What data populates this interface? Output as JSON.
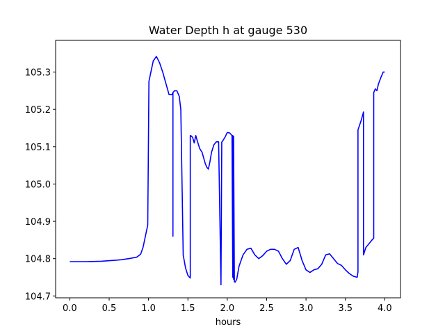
{
  "chart_data": {
    "type": "line",
    "title": "Water Depth h at gauge 530",
    "xlabel": "hours",
    "ylabel": "",
    "xlim": [
      -0.18,
      4.2
    ],
    "ylim": [
      104.695,
      105.385
    ],
    "x_ticks": [
      0.0,
      0.5,
      1.0,
      1.5,
      2.0,
      2.5,
      3.0,
      3.5,
      4.0
    ],
    "x_tick_labels": [
      "0.0",
      "0.5",
      "1.0",
      "1.5",
      "2.0",
      "2.5",
      "3.0",
      "3.5",
      "4.0"
    ],
    "y_ticks": [
      104.7,
      104.8,
      104.9,
      105.0,
      105.1,
      105.2,
      105.3
    ],
    "y_tick_labels": [
      "104.7",
      "104.8",
      "104.9",
      "105.0",
      "105.1",
      "105.2",
      "105.3"
    ],
    "grid": false,
    "legend": "none",
    "series": [
      {
        "color": "#0000ff",
        "x": [
          0.0,
          0.2,
          0.4,
          0.6,
          0.65,
          0.75,
          0.85,
          0.9,
          0.93,
          0.96,
          0.99,
          1.005,
          1.005,
          1.03,
          1.06,
          1.1,
          1.14,
          1.18,
          1.22,
          1.26,
          1.3,
          1.31,
          1.31,
          1.31,
          1.33,
          1.36,
          1.39,
          1.41,
          1.44,
          1.44,
          1.47,
          1.5,
          1.53,
          1.53,
          1.535,
          1.56,
          1.58,
          1.6,
          1.62,
          1.65,
          1.68,
          1.7,
          1.72,
          1.74,
          1.76,
          1.78,
          1.8,
          1.83,
          1.86,
          1.89,
          1.92,
          1.93,
          1.93,
          1.94,
          1.97,
          2.0,
          2.03,
          2.06,
          2.07,
          2.07,
          2.08,
          2.08,
          2.09,
          2.09,
          2.1,
          2.12,
          2.15,
          2.2,
          2.25,
          2.3,
          2.35,
          2.4,
          2.45,
          2.5,
          2.55,
          2.6,
          2.65,
          2.7,
          2.75,
          2.8,
          2.85,
          2.9,
          2.95,
          3.0,
          3.05,
          3.1,
          3.15,
          3.2,
          3.25,
          3.3,
          3.35,
          3.4,
          3.45,
          3.5,
          3.55,
          3.6,
          3.65,
          3.66,
          3.66,
          3.7,
          3.73,
          3.73,
          3.76,
          3.8,
          3.83,
          3.86,
          3.86,
          3.88,
          3.9,
          3.92,
          3.95,
          3.98,
          4.0
        ],
        "y": [
          104.792,
          104.792,
          104.793,
          104.796,
          104.797,
          104.8,
          104.804,
          104.812,
          104.83,
          104.86,
          104.89,
          105.27,
          105.275,
          105.3,
          105.33,
          105.342,
          105.325,
          105.3,
          105.27,
          105.24,
          105.24,
          105.245,
          104.86,
          105.245,
          105.25,
          105.25,
          105.235,
          105.2,
          104.815,
          104.81,
          104.775,
          104.755,
          104.748,
          105.13,
          105.13,
          105.125,
          105.11,
          105.13,
          105.115,
          105.095,
          105.085,
          105.07,
          105.055,
          105.045,
          105.04,
          105.06,
          105.085,
          105.105,
          105.113,
          105.113,
          104.73,
          105.112,
          105.112,
          105.115,
          105.125,
          105.138,
          105.137,
          105.13,
          104.75,
          105.13,
          104.745,
          105.128,
          104.75,
          104.738,
          104.737,
          104.745,
          104.78,
          104.81,
          104.825,
          104.828,
          104.81,
          104.8,
          104.808,
          104.82,
          104.825,
          104.825,
          104.82,
          104.8,
          104.785,
          104.795,
          104.825,
          104.83,
          104.795,
          104.77,
          104.763,
          104.77,
          104.773,
          104.785,
          104.81,
          104.813,
          104.8,
          104.787,
          104.782,
          104.77,
          104.76,
          104.753,
          104.75,
          104.765,
          105.145,
          105.17,
          105.193,
          104.81,
          104.83,
          104.84,
          104.848,
          104.855,
          105.245,
          105.255,
          105.25,
          105.268,
          105.285,
          105.3,
          105.3
        ]
      }
    ]
  }
}
